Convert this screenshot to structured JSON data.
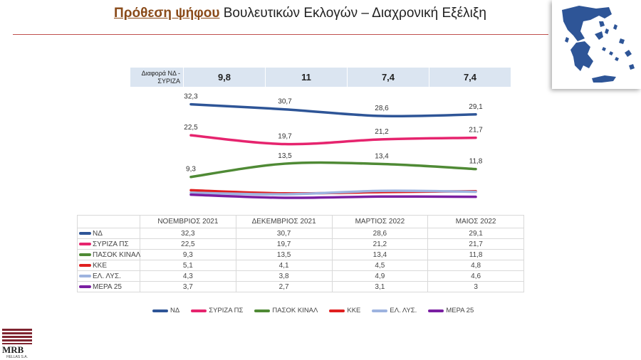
{
  "header": {
    "title_part1": "Πρόθεση ψήφου",
    "title_part2": "Βουλευτικών Εκλογών – Διαχρονική Εξέλιξη"
  },
  "logo": {
    "name": "MRB",
    "sub": "HELLAS S.A."
  },
  "difference": {
    "label": "Διαφορά ΝΔ - ΣΥΡΙΖΑ",
    "values": [
      "9,8",
      "11",
      "7,4",
      "7,4"
    ]
  },
  "colors": {
    "title": "#8a4b1a",
    "rule": "#c0504d",
    "diff_bg": "#dbe5f1",
    "map": "#2e5597"
  },
  "chart_data": {
    "type": "line",
    "categories": [
      "ΝΟΕΜΒΡΙΟΣ 2021",
      "ΔΕΚΕΜΒΡΙΟΣ 2021",
      "ΜΑΡΤΙΟΣ 2022",
      "ΜΑΙΟΣ 2022"
    ],
    "series": [
      {
        "name": "ΝΔ",
        "color": "#2e5597",
        "values": [
          32.3,
          30.7,
          28.6,
          29.1
        ],
        "labels": [
          "32,3",
          "30,7",
          "28,6",
          "29,1"
        ],
        "show_labels": true
      },
      {
        "name": "ΣΥΡΙΖΑ ΠΣ",
        "color": "#e6246e",
        "values": [
          22.5,
          19.7,
          21.2,
          21.7
        ],
        "labels": [
          "22,5",
          "19,7",
          "21,2",
          "21,7"
        ],
        "show_labels": true
      },
      {
        "name": "ΠΑΣΟΚ ΚΙΝΑΛ",
        "color": "#4f8a35",
        "values": [
          9.3,
          13.5,
          13.4,
          11.8
        ],
        "labels": [
          "9,3",
          "13,5",
          "13,4",
          "11,8"
        ],
        "show_labels": true
      },
      {
        "name": "ΚΚΕ",
        "color": "#e02020",
        "values": [
          5.1,
          4.1,
          4.5,
          4.8
        ],
        "labels": [
          "5,1",
          "4,1",
          "4,5",
          "4,8"
        ],
        "show_labels": false
      },
      {
        "name": "ΕΛ. ΛΥΣ.",
        "color": "#9db3df",
        "values": [
          4.3,
          3.8,
          4.9,
          4.6
        ],
        "labels": [
          "4,3",
          "3,8",
          "4,9",
          "4,6"
        ],
        "show_labels": false
      },
      {
        "name": "ΜΕΡΑ 25",
        "color": "#7a1fa2",
        "values": [
          3.7,
          2.7,
          3.1,
          3.0
        ],
        "labels": [
          "3,7",
          "2,7",
          "3,1",
          "3"
        ],
        "show_labels": false
      }
    ],
    "legend_position": "bottom",
    "grid": false
  }
}
